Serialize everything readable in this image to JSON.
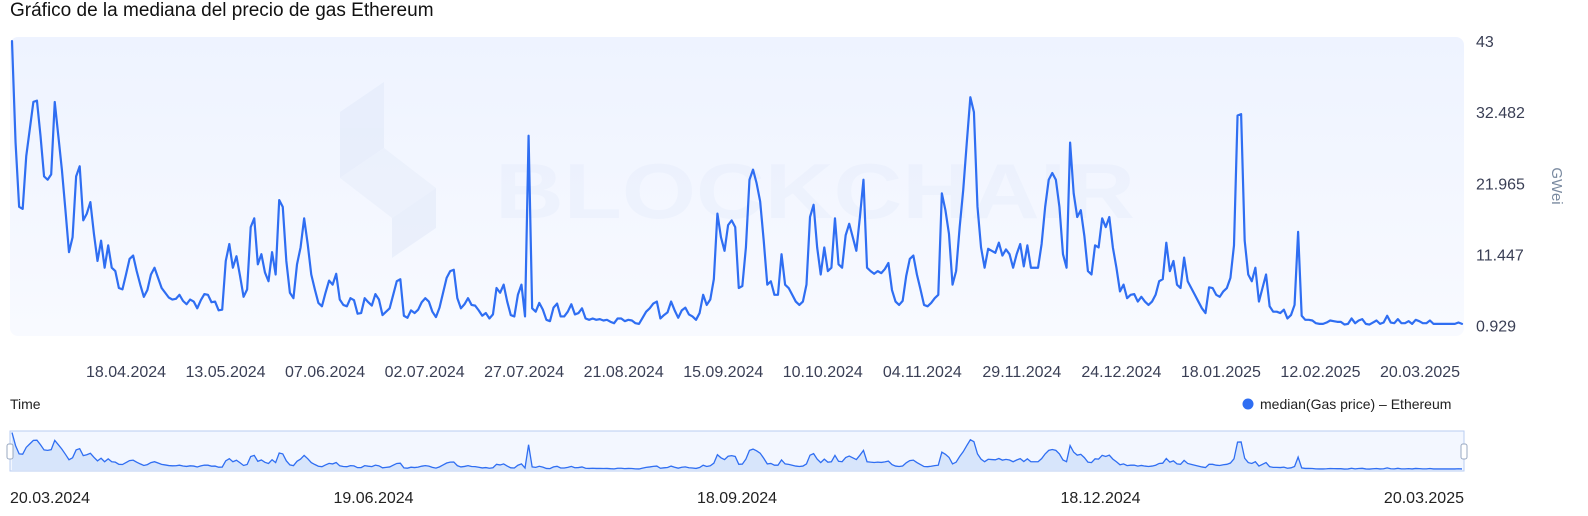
{
  "title": "Gráfico de la mediana del precio de gas Ethereum",
  "watermark": "BLOCKCHAIR",
  "colors": {
    "line": "#2f6ef2",
    "plot_bg": "#f1f5ff",
    "navigator_fill": "#d4e2fb"
  },
  "chart_data": {
    "type": "line",
    "title": "Gráfico de la mediana del precio de gas Ethereum",
    "xlabel": "Time",
    "ylabel": "GWei",
    "y_ticks": [
      "43",
      "32.482",
      "21.965",
      "11.447",
      "0.929"
    ],
    "y_tick_values": [
      43,
      32.482,
      21.965,
      11.447,
      0.929
    ],
    "ylim": [
      0.929,
      43
    ],
    "x_ticks": [
      "18.04.2024",
      "13.05.2024",
      "07.06.2024",
      "02.07.2024",
      "27.07.2024",
      "21.08.2024",
      "15.09.2024",
      "10.10.2024",
      "04.11.2024",
      "29.11.2024",
      "24.12.2024",
      "18.01.2025",
      "12.02.2025",
      "20.03.2025"
    ],
    "navigator_ticks": [
      "20.03.2024",
      "19.06.2024",
      "18.09.2024",
      "18.12.2024",
      "20.03.2025"
    ],
    "legend_position": "bottom-right",
    "grid": false,
    "series": [
      {
        "name": "median(Gas price) – Ethereum",
        "x_start": "20.03.2024",
        "x_end": "20.03.2025",
        "values": [
          43,
          28,
          18.5,
          18.2,
          26,
          30,
          34,
          34.2,
          29,
          23,
          22.5,
          23.3,
          34,
          29,
          24,
          18,
          11.8,
          14,
          23,
          24.5,
          16.5,
          17.5,
          19.2,
          14.5,
          10.5,
          13.5,
          9.5,
          12.8,
          9.5,
          9,
          6.5,
          6.3,
          8.5,
          10.8,
          11.3,
          9,
          7,
          5.2,
          6.2,
          8.5,
          9.5,
          8,
          6.5,
          5.8,
          5.1,
          4.8,
          4.9,
          5.5,
          4.6,
          4.1,
          4.8,
          4.5,
          3.5,
          4.7,
          5.6,
          5.5,
          4.4,
          4.5,
          3.2,
          3.3,
          10.5,
          13,
          9.5,
          11.2,
          8.3,
          5.2,
          6.3,
          15.5,
          16.8,
          10,
          11.5,
          8.8,
          7.5,
          11.8,
          8.5,
          19.5,
          18.5,
          10.5,
          5.8,
          5,
          10,
          12.5,
          16.8,
          13,
          8.5,
          6.3,
          4.3,
          3.8,
          5.8,
          7.6,
          7,
          8.6,
          4.8,
          4,
          3.8,
          5,
          4.7,
          2.7,
          2.8,
          5,
          4.4,
          3.9,
          5.6,
          4.8,
          2.5,
          3,
          3.5,
          5.5,
          7.5,
          7.8,
          2.4,
          2.1,
          3.2,
          2.8,
          3.3,
          4.4,
          5,
          4.5,
          3,
          2.2,
          3.6,
          5.8,
          8,
          9,
          9.2,
          5,
          3.5,
          4.1,
          5,
          4,
          3.9,
          3.2,
          2.4,
          2.8,
          2,
          2.6,
          6.5,
          5.8,
          7,
          4.5,
          2.5,
          2.3,
          5.5,
          7,
          2.3,
          29,
          3.5,
          3,
          4.3,
          3.3,
          1.8,
          1.6,
          3.6,
          4.2,
          2.3,
          2.3,
          3,
          4.1,
          2.6,
          2.8,
          3.5,
          2,
          1.8,
          2,
          1.8,
          1.9,
          1.7,
          1.8,
          1.5,
          1.3,
          2,
          2,
          1.6,
          1.8,
          1.7,
          1.3,
          1.2,
          2.1,
          3,
          3.5,
          4.2,
          4.5,
          2,
          2.5,
          2.9,
          4.5,
          3.2,
          2.1,
          3.2,
          3.6,
          2.6,
          2.3,
          1.8,
          2.8,
          5.5,
          4,
          4.8,
          7.8,
          17.5,
          14,
          12,
          15.8,
          16.5,
          15.5,
          6.5,
          6.8,
          12.5,
          22.5,
          24,
          22,
          19.3,
          13.5,
          7,
          7.5,
          5.5,
          5.5,
          11.5,
          7,
          6.5,
          5.5,
          4.5,
          4,
          4.5,
          7,
          17,
          18.8,
          12.5,
          8.5,
          12.5,
          9,
          9.5,
          16.8,
          10,
          9.5,
          14.3,
          16,
          14,
          12,
          17,
          22.5,
          9.5,
          9,
          8.6,
          9,
          8.7,
          9.3,
          10.2,
          6.2,
          4.5,
          4,
          4.6,
          8.3,
          10.8,
          11.3,
          8.5,
          6.3,
          4,
          3.8,
          4.3,
          5,
          5.5,
          20.5,
          18,
          14.5,
          7,
          9,
          15.5,
          21,
          28,
          34.7,
          32.5,
          18.5,
          12.5,
          9.5,
          12.3,
          12,
          11.7,
          13.2,
          11.3,
          12.2,
          11.5,
          9.5,
          11.5,
          13,
          9.7,
          12.8,
          9.5,
          9.5,
          9.5,
          13,
          18.5,
          22.5,
          23.5,
          22.5,
          18.5,
          11.5,
          9.5,
          28,
          20.5,
          17,
          18,
          14.2,
          9,
          8.5,
          12.8,
          12.5,
          16.8,
          15.5,
          17,
          12.5,
          9.5,
          6,
          7,
          5,
          5.5,
          5.6,
          4.5,
          5.2,
          4.5,
          4,
          4.5,
          5.5,
          7.5,
          7.8,
          13.2,
          9,
          10.5,
          7,
          6.5,
          11,
          7.5,
          6.5,
          5.5,
          4.5,
          3.5,
          2.8,
          6.6,
          6.5,
          5.5,
          5.2,
          6,
          6.5,
          8,
          12.8,
          32,
          32.2,
          13.5,
          8.5,
          7.5,
          9.5,
          4.5,
          6.5,
          8.5,
          3.8,
          3,
          3,
          2.8,
          3.3,
          2,
          2.5,
          4,
          14.8,
          2.4,
          1.8,
          1.8,
          1.7,
          1.3,
          1.2,
          1.2,
          1.4,
          1.7,
          1.6,
          1.5,
          1.5,
          1.1,
          1.2,
          2,
          1.3,
          1.7,
          1.9,
          1.2,
          1.1,
          1.4,
          1.7,
          1.2,
          1.4,
          2.4,
          1.4,
          1.3,
          1.9,
          1.3,
          1.3,
          1.6,
          1.2,
          1.8,
          1.6,
          1.3,
          1.3,
          1.7,
          1.2,
          1.2,
          1.2,
          1.2,
          1.2,
          1.2,
          1.2,
          1.4,
          1.2
        ]
      }
    ]
  }
}
